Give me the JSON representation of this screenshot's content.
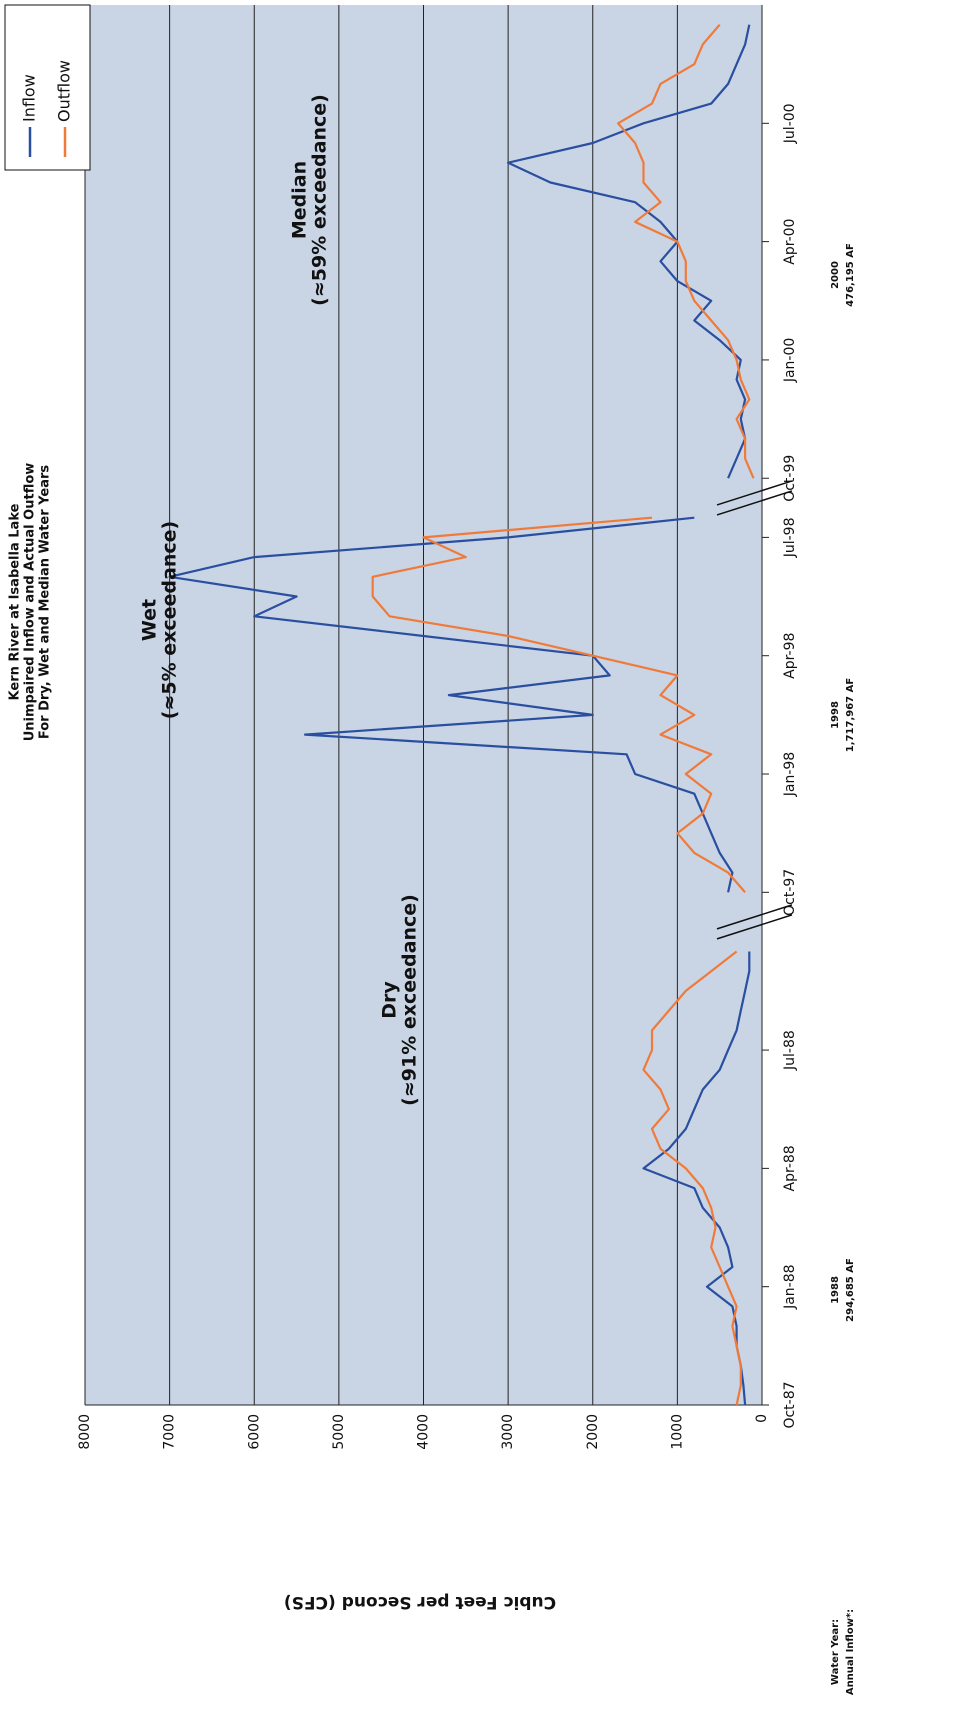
{
  "chart_data": {
    "type": "line",
    "title": [
      "Kern River at Isabella Lake",
      "Unimpaired Inflow and Actual Outflow",
      "For Dry, Wet and Median Water Years"
    ],
    "ylabel": "Cubic Feet per Second (CFS)",
    "ylim": [
      0,
      8000
    ],
    "yticks": [
      0,
      1000,
      2000,
      3000,
      4000,
      5000,
      6000,
      7000,
      8000
    ],
    "xlim": [
      0,
      71
    ],
    "xticks": [
      {
        "value": 0,
        "label": "Oct-87"
      },
      {
        "value": 6,
        "label": "Jan-88"
      },
      {
        "value": 12,
        "label": "Apr-88"
      },
      {
        "value": 18,
        "label": "Jul-88"
      },
      {
        "value": 26,
        "label": "Oct-97"
      },
      {
        "value": 32,
        "label": "Jan-98"
      },
      {
        "value": 38,
        "label": "Apr-98"
      },
      {
        "value": 44,
        "label": "Jul-98"
      },
      {
        "value": 47,
        "label": "Oct-99"
      },
      {
        "value": 53,
        "label": "Jan-00"
      },
      {
        "value": 59,
        "label": "Apr-00"
      },
      {
        "value": 65,
        "label": "Jul-00"
      }
    ],
    "grid": true,
    "legend": "upper right",
    "series": [
      {
        "name": "Inflow",
        "color": "#2a4fa0",
        "values": [
          200,
          220,
          250,
          300,
          300,
          350,
          650,
          350,
          400,
          500,
          700,
          800,
          1400,
          1100,
          900,
          800,
          700,
          500,
          400,
          300,
          250,
          200,
          150,
          150,
          null,
          null,
          400,
          350,
          500,
          600,
          700,
          800,
          1500,
          1600,
          5400,
          2000,
          3700,
          1800,
          2000,
          4000,
          6000,
          5500,
          7000,
          6000,
          3000,
          800,
          null,
          400,
          300,
          200,
          250,
          200,
          300,
          250,
          500,
          800,
          600,
          1000,
          1200,
          1000,
          1200,
          1500,
          2500,
          3000,
          2000,
          1400,
          600,
          400,
          300,
          200,
          150
        ]
      },
      {
        "name": "Outflow",
        "color": "#f07a3a",
        "values": [
          300,
          250,
          250,
          300,
          350,
          300,
          400,
          500,
          600,
          550,
          600,
          700,
          900,
          1200,
          1300,
          1100,
          1200,
          1400,
          1300,
          1300,
          1100,
          900,
          600,
          300,
          null,
          null,
          200,
          400,
          800,
          1000,
          700,
          600,
          900,
          600,
          1200,
          800,
          1200,
          1000,
          2000,
          3000,
          4400,
          4600,
          4600,
          3500,
          4000,
          1300,
          null,
          100,
          200,
          200,
          300,
          150,
          250,
          300,
          400,
          600,
          800,
          900,
          900,
          1000,
          1500,
          1200,
          1400,
          1400,
          1500,
          1700,
          1300,
          1200,
          800,
          700,
          500
        ]
      }
    ],
    "annotations": [
      "Dry",
      "(≈91% exceedance)",
      "Wet",
      "(≈5% exceedance)",
      "Median",
      "(≈59% exceedance)"
    ],
    "footer": {
      "water_year_label": "Water Year:",
      "inflow_label": "Annual Inflow*:",
      "years": [
        {
          "year": "1988",
          "inflow": "294,685 AF"
        },
        {
          "year": "1998",
          "inflow": "1,717,967 AF"
        },
        {
          "year": "2000",
          "inflow": "476,195 AF"
        }
      ]
    }
  }
}
